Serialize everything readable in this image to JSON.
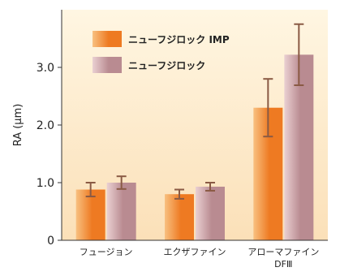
{
  "chart_data": {
    "type": "bar",
    "title": "",
    "xlabel": "",
    "ylabel": "RA (μm)",
    "ylim": [
      0,
      4.0
    ],
    "yticks": [
      0,
      1.0,
      2.0,
      3.0
    ],
    "ytick_labels": [
      "0",
      "1.0",
      "2.0",
      "3.0"
    ],
    "categories": [
      [
        "フュージョン"
      ],
      [
        "エクザファイン"
      ],
      [
        "アローマファイン",
        "DFⅢ"
      ]
    ],
    "series": [
      {
        "name": "ニューフジロック IMP",
        "values": [
          0.88,
          0.8,
          2.3
        ],
        "errors": [
          0.12,
          0.08,
          0.5
        ],
        "color_light": "#f8c080",
        "color_dark": "#ee7a22"
      },
      {
        "name": "ニューフジロック",
        "values": [
          1.0,
          0.93,
          3.22
        ],
        "errors": [
          0.11,
          0.07,
          0.53
        ],
        "color_light": "#ead0d2",
        "color_dark": "#b98b91"
      }
    ],
    "error_bar_color": "#8a5a44",
    "legend_position": "top-left",
    "grid": false,
    "background_colors": [
      "#fff6e2",
      "#fbe0b8"
    ]
  }
}
